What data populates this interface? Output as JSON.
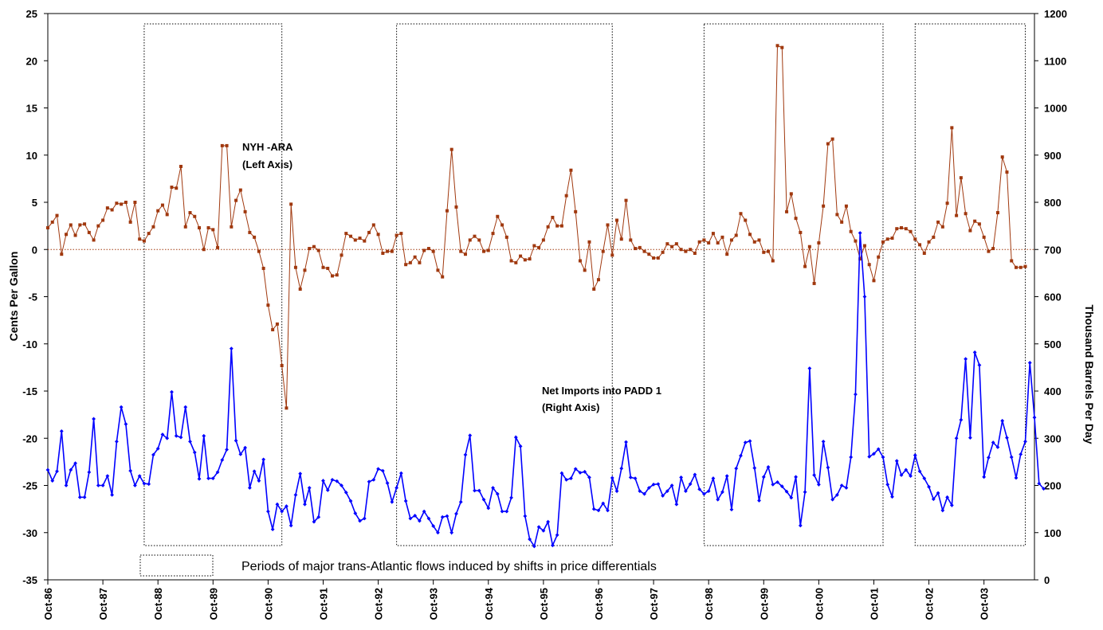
{
  "chart_data": {
    "type": "line",
    "xlabel": "",
    "ylabel": "Cents Per Gallon",
    "y2label": "Thousand Barrels Per Day",
    "ylim": [
      -35,
      25
    ],
    "y2lim": [
      0,
      1200
    ],
    "yticks": [
      25,
      20,
      15,
      10,
      5,
      0,
      -5,
      -10,
      -15,
      -20,
      -25,
      -30,
      -35
    ],
    "y2ticks": [
      1200,
      1100,
      1000,
      900,
      800,
      700,
      600,
      500,
      400,
      300,
      200,
      100,
      0
    ],
    "x_tick_labels": [
      "Oct-86",
      "Oct-87",
      "Oct-88",
      "Oct-89",
      "Oct-90",
      "Oct-91",
      "Oct-92",
      "Oct-93",
      "Oct-94",
      "Oct-95",
      "Oct-96",
      "Oct-97",
      "Oct-98",
      "Oct-99",
      "Oct-00",
      "Oct-01",
      "Oct-02",
      "Oct-03"
    ],
    "x_start": "1986-10",
    "grid": false,
    "zero_line": true,
    "annotations": [
      {
        "lines": [
          "NYH -ARA",
          "(Left Axis)"
        ]
      },
      {
        "lines": [
          "Net Imports into PADD 1",
          "(Right Axis)"
        ]
      }
    ],
    "legend_text": "Periods of major trans-Atlantic flows induced by shifts in price differentials",
    "shaded_periods": [
      {
        "start": "1988-07",
        "end": "1991-01"
      },
      {
        "start": "1993-02",
        "end": "1997-01"
      },
      {
        "start": "1998-09",
        "end": "2001-12"
      },
      {
        "start": "2002-07",
        "end": "2004-07"
      }
    ],
    "series": [
      {
        "name": "NYH -ARA",
        "axis": "left",
        "color": "#A0380E",
        "marker": "square",
        "values": [
          2.3,
          2.9,
          3.6,
          -0.5,
          1.6,
          2.6,
          1.5,
          2.6,
          2.7,
          1.8,
          1.0,
          2.5,
          3.1,
          4.4,
          4.2,
          4.9,
          4.8,
          5.0,
          2.9,
          5.0,
          1.1,
          0.9,
          1.7,
          2.4,
          4.1,
          4.7,
          3.7,
          6.6,
          6.5,
          8.8,
          2.4,
          3.9,
          3.5,
          2.3,
          0.0,
          2.3,
          2.1,
          0.2,
          11.0,
          11.0,
          2.4,
          5.2,
          6.3,
          4.0,
          1.8,
          1.3,
          -0.2,
          -2.0,
          -5.9,
          -8.5,
          -7.9,
          -12.3,
          -16.8,
          4.8,
          -1.9,
          -4.2,
          -2.2,
          0.1,
          0.3,
          -0.1,
          -1.9,
          -2.0,
          -2.8,
          -2.7,
          -0.6,
          1.7,
          1.4,
          1.0,
          1.2,
          0.9,
          1.8,
          2.6,
          1.6,
          -0.4,
          -0.2,
          -0.2,
          1.5,
          1.7,
          -1.6,
          -1.4,
          -0.8,
          -1.4,
          -0.1,
          0.1,
          -0.2,
          -2.2,
          -2.9,
          4.1,
          10.6,
          4.5,
          -0.2,
          -0.5,
          1.0,
          1.4,
          1.0,
          -0.2,
          -0.1,
          1.7,
          3.5,
          2.6,
          1.3,
          -1.2,
          -1.4,
          -0.7,
          -1.1,
          -1.0,
          0.4,
          0.2,
          1.0,
          2.4,
          3.4,
          2.5,
          2.5,
          5.7,
          8.4,
          4.0,
          -1.2,
          -2.2,
          0.8,
          -4.2,
          -3.2,
          -0.2,
          2.6,
          -0.6,
          3.1,
          1.1,
          5.2,
          1.0,
          0.1,
          0.2,
          -0.2,
          -0.5,
          -0.9,
          -0.9,
          -0.3,
          0.6,
          0.3,
          0.6,
          0.0,
          -0.2,
          0.0,
          -0.4,
          0.8,
          1.0,
          0.7,
          1.7,
          0.7,
          1.3,
          -0.5,
          1.0,
          1.5,
          3.8,
          3.1,
          1.6,
          0.8,
          1.0,
          -0.3,
          -0.2,
          -1.2,
          21.6,
          21.4,
          4.0,
          5.9,
          3.3,
          1.8,
          -1.8,
          0.3,
          -3.6,
          0.7,
          4.6,
          11.2,
          11.7,
          3.7,
          2.9,
          4.6,
          1.9,
          0.9,
          -1.0,
          0.4,
          -1.6,
          -3.3,
          -0.8,
          0.8,
          1.1,
          1.2,
          2.2,
          2.3,
          2.2,
          1.9,
          1.1,
          0.5,
          -0.4,
          0.8,
          1.3,
          2.9,
          2.4,
          4.9,
          12.9,
          3.6,
          7.6,
          3.8,
          2.0,
          3.0,
          2.7,
          1.3,
          -0.2,
          0.1,
          3.9,
          9.8,
          8.2,
          -1.2,
          -1.9,
          -1.9,
          -1.8
        ]
      },
      {
        "name": "Net Imports into PADD 1",
        "axis": "right",
        "color": "#0000FF",
        "marker": "diamond",
        "values": [
          233,
          210,
          230,
          315,
          200,
          233,
          247,
          175,
          175,
          228,
          341,
          200,
          200,
          220,
          180,
          293,
          366,
          330,
          231,
          200,
          220,
          204,
          203,
          265,
          278,
          308,
          300,
          398,
          305,
          302,
          366,
          293,
          270,
          214,
          305,
          215,
          215,
          228,
          254,
          276,
          490,
          295,
          266,
          280,
          195,
          230,
          210,
          255,
          145,
          107,
          160,
          145,
          156,
          115,
          180,
          225,
          160,
          195,
          123,
          133,
          210,
          190,
          212,
          209,
          200,
          185,
          167,
          141,
          125,
          130,
          208,
          212,
          235,
          231,
          205,
          165,
          195,
          226,
          167,
          130,
          136,
          125,
          145,
          130,
          114,
          100,
          133,
          135,
          100,
          140,
          165,
          265,
          306,
          189,
          189,
          170,
          152,
          195,
          182,
          145,
          145,
          174,
          302,
          283,
          135,
          86,
          71,
          112,
          104,
          123,
          73,
          95,
          226,
          212,
          215,
          235,
          227,
          229,
          217,
          150,
          147,
          162,
          147,
          216,
          188,
          236,
          292,
          217,
          215,
          188,
          182,
          195,
          202,
          203,
          178,
          188,
          200,
          160,
          217,
          188,
          203,
          223,
          192,
          182,
          188,
          215,
          170,
          186,
          220,
          149,
          236,
          263,
          291,
          294,
          237,
          168,
          218,
          239,
          202,
          207,
          198,
          187,
          174,
          218,
          115,
          186,
          448,
          222,
          202,
          293,
          238,
          170,
          180,
          200,
          195,
          260,
          393,
          735,
          600,
          261,
          267,
          277,
          260,
          202,
          176,
          252,
          222,
          233,
          220,
          264,
          230,
          215,
          197,
          171,
          184,
          147,
          175,
          158,
          300,
          339,
          468,
          301,
          482,
          455,
          218,
          259,
          291,
          281,
          337,
          301,
          260,
          216,
          266,
          293,
          460,
          344,
          204,
          193
        ]
      }
    ]
  }
}
